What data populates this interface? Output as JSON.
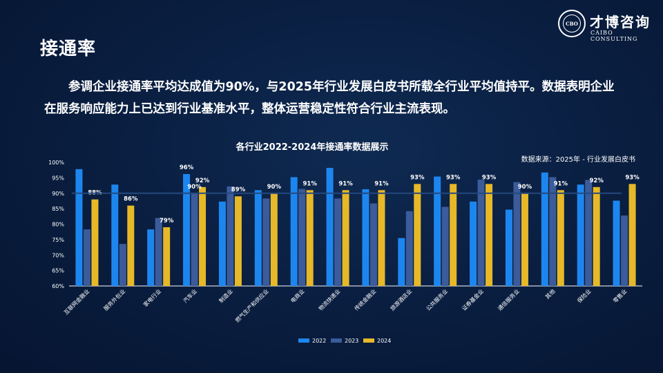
{
  "page": {
    "title": "接通率",
    "summary": "参调企业接通率平均达成值为90%，与2025年行业发展白皮书所载全行业平均值持平。数据表明企业在服务响应能力上已达到行业基准水平，整体运营稳定性符合行业主流表现。"
  },
  "logo": {
    "cn": "才博咨询",
    "en": "CAIBO CONSULTING",
    "seal": "CBO"
  },
  "colors": {
    "y2022": "#1d86ee",
    "y2023": "#3b5b9a",
    "y2024": "#e7b928",
    "avg_line": "#24487e"
  },
  "chart_data": {
    "type": "bar",
    "title": "各行业2022-2024年接通率数据展示",
    "source": "数据来源：2025年 - 行业发展白皮书",
    "categories": [
      "互联网金融业",
      "服务外包业",
      "家电行业",
      "汽车业",
      "制造业",
      "燃气生产和供应业",
      "电商业",
      "物流快递业",
      "传统金融业",
      "旅游酒店业",
      "公共服务业",
      "证券基金业",
      "通信服务业",
      "其他",
      "保险业",
      "零售业"
    ],
    "series": [
      {
        "name": "2022",
        "values": [
          97.8,
          92.8,
          78.3,
          96.2,
          87.3,
          91.0,
          95.2,
          98.2,
          91.3,
          75.5,
          95.4,
          87.3,
          84.7,
          96.7,
          92.8,
          87.6
        ]
      },
      {
        "name": "2023",
        "values": [
          78.3,
          73.6,
          82.0,
          90.0,
          92.2,
          88.3,
          91.4,
          88.3,
          86.7,
          84.2,
          85.6,
          94.4,
          93.6,
          95.2,
          94.3,
          82.8
        ]
      },
      {
        "name": "2024",
        "values": [
          88.0,
          86.0,
          79.0,
          92.0,
          89.0,
          90.0,
          91.0,
          91.0,
          91.0,
          93.0,
          93.0,
          93.0,
          90.0,
          91.0,
          92.0,
          93.0
        ]
      }
    ],
    "data_labels": [
      "88%",
      "86%",
      "79%",
      "92%",
      "89%",
      "90%",
      "91%",
      "91%",
      "91%",
      "93%",
      "93%",
      "93%",
      "90%",
      "91%",
      "92%",
      "93%"
    ],
    "extra_labels": [
      {
        "category": "汽车业",
        "series": "2022",
        "text": "96%"
      },
      {
        "category": "汽车业",
        "series": "2023",
        "text": "90%"
      }
    ],
    "reference_line": 90,
    "yticks": [
      "60%",
      "65%",
      "70%",
      "75%",
      "80%",
      "85%",
      "90%",
      "95%",
      "100%"
    ],
    "ylim": [
      60,
      100
    ],
    "legend": [
      "2022",
      "2023",
      "2024"
    ],
    "legend_position": "bottom"
  }
}
